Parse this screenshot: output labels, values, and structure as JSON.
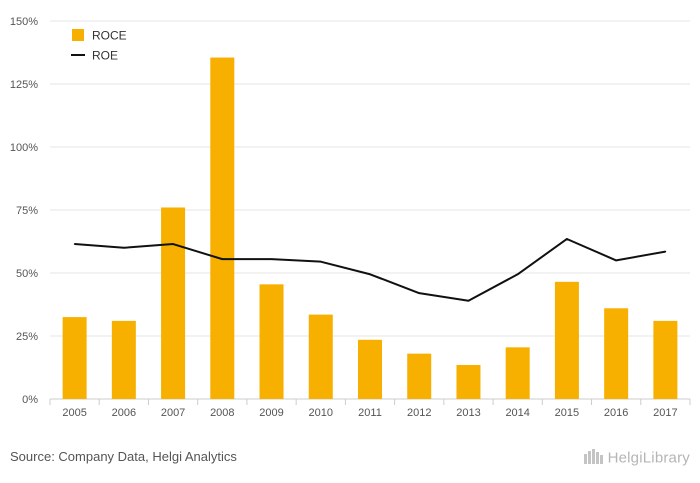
{
  "chart_data": {
    "type": "bar",
    "categories": [
      "2005",
      "2006",
      "2007",
      "2008",
      "2009",
      "2010",
      "2011",
      "2012",
      "2013",
      "2014",
      "2015",
      "2016",
      "2017"
    ],
    "series": [
      {
        "name": "ROCE",
        "type": "bar",
        "color": "#f7b000",
        "values": [
          32.5,
          31,
          76,
          135.5,
          45.5,
          33.5,
          23.5,
          18,
          13.5,
          20.5,
          46.5,
          36,
          31
        ]
      },
      {
        "name": "ROE",
        "type": "line",
        "color": "#111111",
        "values": [
          61.5,
          60,
          61.5,
          55.5,
          55.5,
          54.5,
          49.5,
          42,
          39,
          49.5,
          63.5,
          55,
          58.5
        ]
      }
    ],
    "y_ticks": [
      "0%",
      "25%",
      "50%",
      "75%",
      "100%",
      "125%",
      "150%"
    ],
    "ylim": [
      0,
      150
    ],
    "grid": true,
    "legend_position": "top-left"
  },
  "footer": {
    "source": "Source: Company Data, Helgi Analytics",
    "brand": "HelgiLibrary",
    "brand_icon": "building-icon"
  }
}
